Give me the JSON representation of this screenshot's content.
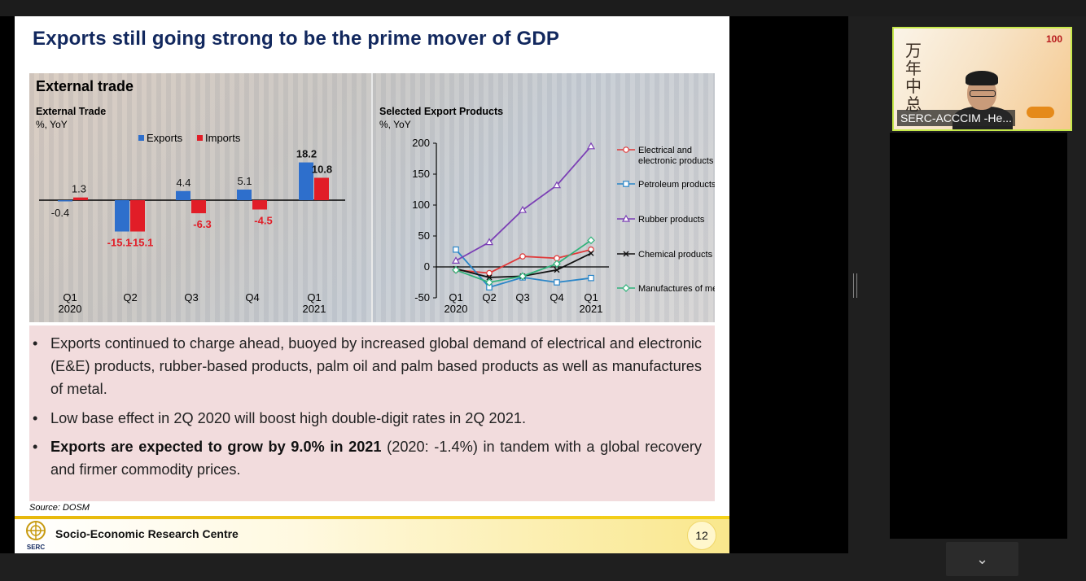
{
  "slide": {
    "title": "Exports still going strong to be the prime mover of GDP",
    "panel_heading": "External trade",
    "source": "Source:  DOSM",
    "footer_name": "Socio-Economic Research Centre",
    "logo_text": "SERC",
    "page_number": "12",
    "bullets": [
      {
        "text": "Exports continued to charge ahead, buoyed by increased global demand of electrical and electronic (E&E) products, rubber-based products, palm oil and palm based products as well as manufactures of metal."
      },
      {
        "text": "Low base effect in 2Q 2020 will boost high double-digit rates in 2Q 2021."
      },
      {
        "bold": "Exports are expected to grow by 9.0% in 2021",
        "text": " (2020: -1.4%) in tandem with a global recovery and firmer commodity prices."
      }
    ]
  },
  "video": {
    "participant_label": "SERC-ACCCIM -He...",
    "badge": "100"
  },
  "colors": {
    "exports": "#2e6fcc",
    "imports": "#e11d27",
    "electrical": "#e03a3a",
    "petroleum": "#2a86c8",
    "rubber": "#7b3fb5",
    "chemical": "#111111",
    "metal": "#2fb27a"
  },
  "chart_data": [
    {
      "type": "bar",
      "title": "External Trade",
      "unit": "%, YoY",
      "categories": [
        "Q1\n2020",
        "Q2",
        "Q3",
        "Q4",
        "Q1\n2021"
      ],
      "series": [
        {
          "name": "Exports",
          "values": [
            -0.4,
            -15.1,
            4.4,
            5.1,
            18.2
          ]
        },
        {
          "name": "Imports",
          "values": [
            1.3,
            -15.1,
            -6.3,
            -4.5,
            10.8
          ]
        }
      ],
      "legend_position": "top"
    },
    {
      "type": "line",
      "title": "Selected Export Products",
      "unit": "%, YoY",
      "categories": [
        "Q1\n2020",
        "Q2",
        "Q3",
        "Q4",
        "Q1\n2021"
      ],
      "yticks": [
        200,
        150,
        100,
        50,
        0,
        -50
      ],
      "ylim": [
        -50,
        200
      ],
      "series": [
        {
          "name": "Electrical and electronic products",
          "values": [
            -5,
            -10,
            17,
            14,
            28
          ]
        },
        {
          "name": "Petroleum products",
          "values": [
            28,
            -33,
            -17,
            -25,
            -18
          ]
        },
        {
          "name": "Rubber products",
          "values": [
            10,
            40,
            92,
            132,
            195
          ]
        },
        {
          "name": "Chemical products",
          "values": [
            -3,
            -17,
            -15,
            -5,
            22
          ]
        },
        {
          "name": "Manufactures of metal",
          "values": [
            -5,
            -25,
            -15,
            5,
            43
          ]
        }
      ],
      "legend_position": "right"
    }
  ]
}
